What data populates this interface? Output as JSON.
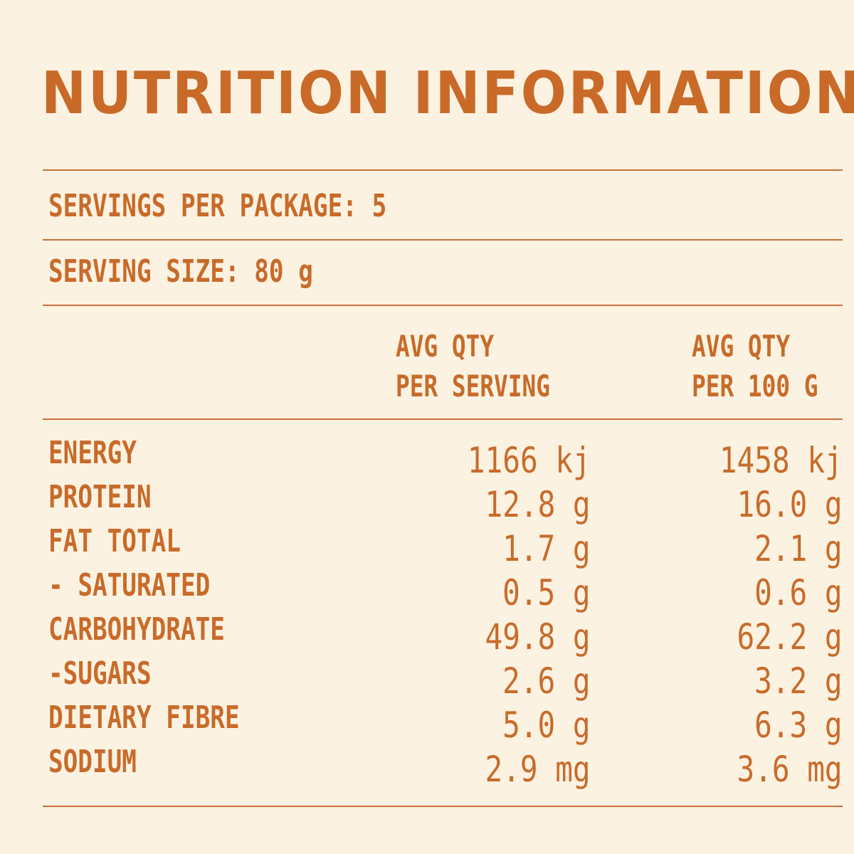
{
  "title": "NUTRITION INFORMATION",
  "servings_per_package": "SERVINGS PER PACKAGE: 5",
  "serving_size": "SERVING SIZE: 80 g",
  "columns": {
    "per_serving": [
      "AVG QTY",
      "PER SERVING"
    ],
    "per_100g": [
      "AVG QTY",
      "PER 100 G"
    ]
  },
  "rows": [
    {
      "label": "ENERGY",
      "per_serving": "1166 kj",
      "per_100g": "1458 kj"
    },
    {
      "label": "PROTEIN",
      "per_serving": "12.8 g",
      "per_100g": "16.0 g"
    },
    {
      "label": "FAT TOTAL",
      "per_serving": "1.7 g",
      "per_100g": "2.1 g"
    },
    {
      "label": "- SATURATED",
      "per_serving": "0.5 g",
      "per_100g": "0.6 g"
    },
    {
      "label": "CARBOHYDRATE",
      "per_serving": "49.8 g",
      "per_100g": "62.2 g"
    },
    {
      "label": "-SUGARS",
      "per_serving": "2.6 g",
      "per_100g": "3.2 g"
    },
    {
      "label": "DIETARY FIBRE",
      "per_serving": "5.0 g",
      "per_100g": "6.3 g"
    },
    {
      "label": "SODIUM",
      "per_serving": "2.9 mg",
      "per_100g": "3.6 mg"
    }
  ],
  "colors": {
    "background": "#fcf2e1",
    "text": "#c86b2a",
    "rule": "#c8713a"
  }
}
